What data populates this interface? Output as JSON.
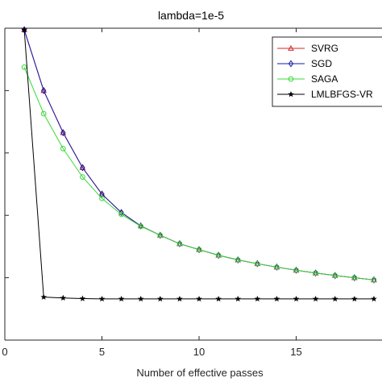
{
  "chart_data": {
    "type": "line",
    "title": "lambda=1e-5",
    "xlabel": "Number of effective passes",
    "ylabel": "",
    "xlim": [
      0,
      19.5
    ],
    "ylim": [
      0,
      1
    ],
    "xticks": [
      0,
      5,
      10,
      15
    ],
    "x_tick_labels": [
      "0",
      "5",
      "10",
      "15"
    ],
    "yticks": [
      0.2,
      0.4,
      0.6,
      0.8,
      1.0
    ],
    "y_tick_labels": [
      "",
      "",
      "",
      "",
      ""
    ],
    "grid": false,
    "legend_position": "top-right",
    "series": [
      {
        "name": "SVRG",
        "color": "#d62728",
        "marker": "triangle",
        "x": [
          1,
          2,
          3,
          4,
          5,
          6,
          7,
          8,
          9,
          10,
          11,
          12,
          13,
          14,
          15,
          16,
          17,
          18,
          19
        ],
        "y": [
          0.995,
          0.8,
          0.665,
          0.553,
          0.468,
          0.409,
          0.366,
          0.336,
          0.309,
          0.29,
          0.272,
          0.257,
          0.245,
          0.234,
          0.224,
          0.215,
          0.207,
          0.2,
          0.193
        ]
      },
      {
        "name": "SGD",
        "color": "#1a1aa8",
        "marker": "diamond",
        "x": [
          1,
          2,
          3,
          4,
          5,
          6,
          7,
          8,
          9,
          10,
          11,
          12,
          13,
          14,
          15,
          16,
          17,
          18,
          19
        ],
        "y": [
          0.995,
          0.8,
          0.665,
          0.553,
          0.468,
          0.409,
          0.366,
          0.336,
          0.309,
          0.29,
          0.272,
          0.257,
          0.245,
          0.234,
          0.224,
          0.215,
          0.207,
          0.2,
          0.193
        ]
      },
      {
        "name": "SAGA",
        "color": "#39d939",
        "marker": "circle",
        "x": [
          1,
          2,
          3,
          4,
          5,
          6,
          7,
          8,
          9,
          10,
          11,
          12,
          13,
          14,
          15,
          16,
          17,
          18,
          19
        ],
        "y": [
          0.875,
          0.726,
          0.614,
          0.523,
          0.454,
          0.403,
          0.365,
          0.336,
          0.309,
          0.29,
          0.272,
          0.257,
          0.245,
          0.234,
          0.224,
          0.215,
          0.207,
          0.2,
          0.193
        ]
      },
      {
        "name": "LMLBFGS-VR",
        "color": "#000000",
        "marker": "star",
        "x": [
          1,
          2,
          3,
          4,
          5,
          6,
          7,
          8,
          9,
          10,
          11,
          12,
          13,
          14,
          15,
          16,
          17,
          18,
          19
        ],
        "y": [
          0.995,
          0.138,
          0.135,
          0.133,
          0.132,
          0.132,
          0.132,
          0.132,
          0.132,
          0.132,
          0.132,
          0.132,
          0.132,
          0.132,
          0.132,
          0.132,
          0.132,
          0.132,
          0.132
        ]
      }
    ]
  }
}
